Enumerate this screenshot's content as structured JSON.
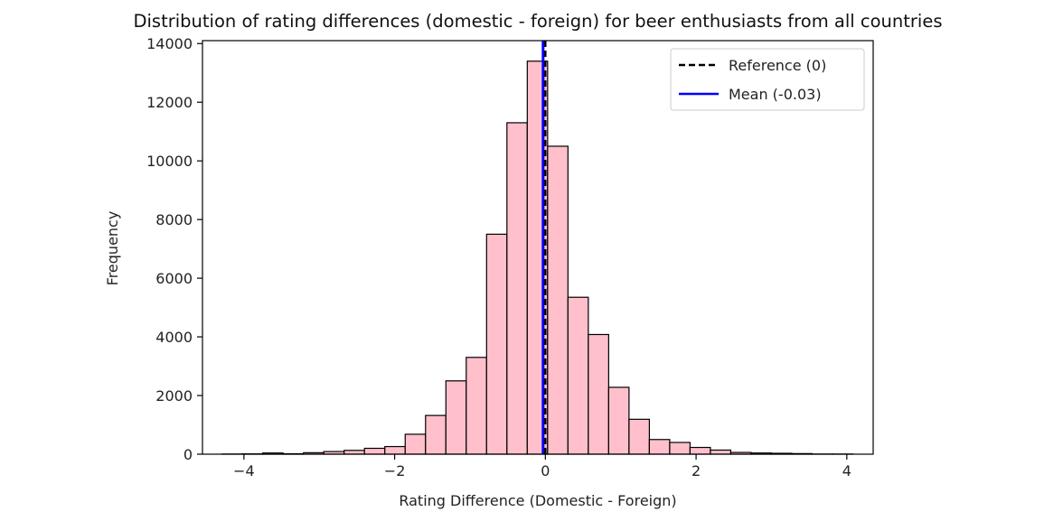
{
  "chart_data": {
    "type": "bar",
    "title": "Distribution of rating differences (domestic - foreign) for beer enthusiasts from all countries",
    "xlabel": "Rating Difference (Domestic - Foreign)",
    "ylabel": "Frequency",
    "xlim": [
      -4.55,
      4.35
    ],
    "ylim": [
      0,
      14100
    ],
    "xticks": [
      -4,
      -2,
      0,
      2,
      4
    ],
    "xtick_labels": [
      "−4",
      "−2",
      "0",
      "2",
      "4"
    ],
    "yticks": [
      0,
      2000,
      4000,
      6000,
      8000,
      10000,
      12000,
      14000
    ],
    "ytick_labels": [
      "0",
      "2000",
      "4000",
      "6000",
      "8000",
      "10000",
      "12000",
      "14000"
    ],
    "bin_width": 0.27,
    "bins": [
      {
        "x0": -4.29,
        "x1": -4.02,
        "value": 5
      },
      {
        "x0": -4.02,
        "x1": -3.75,
        "value": 10
      },
      {
        "x0": -3.75,
        "x1": -3.48,
        "value": 40
      },
      {
        "x0": -3.48,
        "x1": -3.21,
        "value": 15
      },
      {
        "x0": -3.21,
        "x1": -2.94,
        "value": 50
      },
      {
        "x0": -2.94,
        "x1": -2.67,
        "value": 90
      },
      {
        "x0": -2.67,
        "x1": -2.4,
        "value": 130
      },
      {
        "x0": -2.4,
        "x1": -2.13,
        "value": 200
      },
      {
        "x0": -2.13,
        "x1": -1.86,
        "value": 260
      },
      {
        "x0": -1.86,
        "x1": -1.59,
        "value": 680
      },
      {
        "x0": -1.59,
        "x1": -1.32,
        "value": 1320
      },
      {
        "x0": -1.32,
        "x1": -1.05,
        "value": 2500
      },
      {
        "x0": -1.05,
        "x1": -0.78,
        "value": 3300
      },
      {
        "x0": -0.78,
        "x1": -0.51,
        "value": 7500
      },
      {
        "x0": -0.51,
        "x1": -0.24,
        "value": 11300
      },
      {
        "x0": -0.24,
        "x1": 0.03,
        "value": 13400
      },
      {
        "x0": 0.03,
        "x1": 0.3,
        "value": 10500
      },
      {
        "x0": 0.3,
        "x1": 0.57,
        "value": 5350
      },
      {
        "x0": 0.57,
        "x1": 0.84,
        "value": 4080
      },
      {
        "x0": 0.84,
        "x1": 1.11,
        "value": 2280
      },
      {
        "x0": 1.11,
        "x1": 1.38,
        "value": 1190
      },
      {
        "x0": 1.38,
        "x1": 1.65,
        "value": 500
      },
      {
        "x0": 1.65,
        "x1": 1.92,
        "value": 400
      },
      {
        "x0": 1.92,
        "x1": 2.19,
        "value": 230
      },
      {
        "x0": 2.19,
        "x1": 2.46,
        "value": 140
      },
      {
        "x0": 2.46,
        "x1": 2.73,
        "value": 60
      },
      {
        "x0": 2.73,
        "x1": 3.0,
        "value": 40
      },
      {
        "x0": 3.0,
        "x1": 3.27,
        "value": 30
      },
      {
        "x0": 3.27,
        "x1": 3.54,
        "value": 20
      },
      {
        "x0": 3.54,
        "x1": 3.81,
        "value": 5
      },
      {
        "x0": 3.81,
        "x1": 4.08,
        "value": 5
      }
    ],
    "bar_color": "#ffc0cb",
    "bar_edge_color": "#000000",
    "reference_line": {
      "x": 0,
      "label": "Reference (0)",
      "color": "#000000",
      "style": "dashed"
    },
    "mean_line": {
      "x": -0.03,
      "label": "Mean (-0.03)",
      "color": "#0000ff",
      "style": "solid"
    },
    "legend_position": "top-right",
    "grid": false
  }
}
